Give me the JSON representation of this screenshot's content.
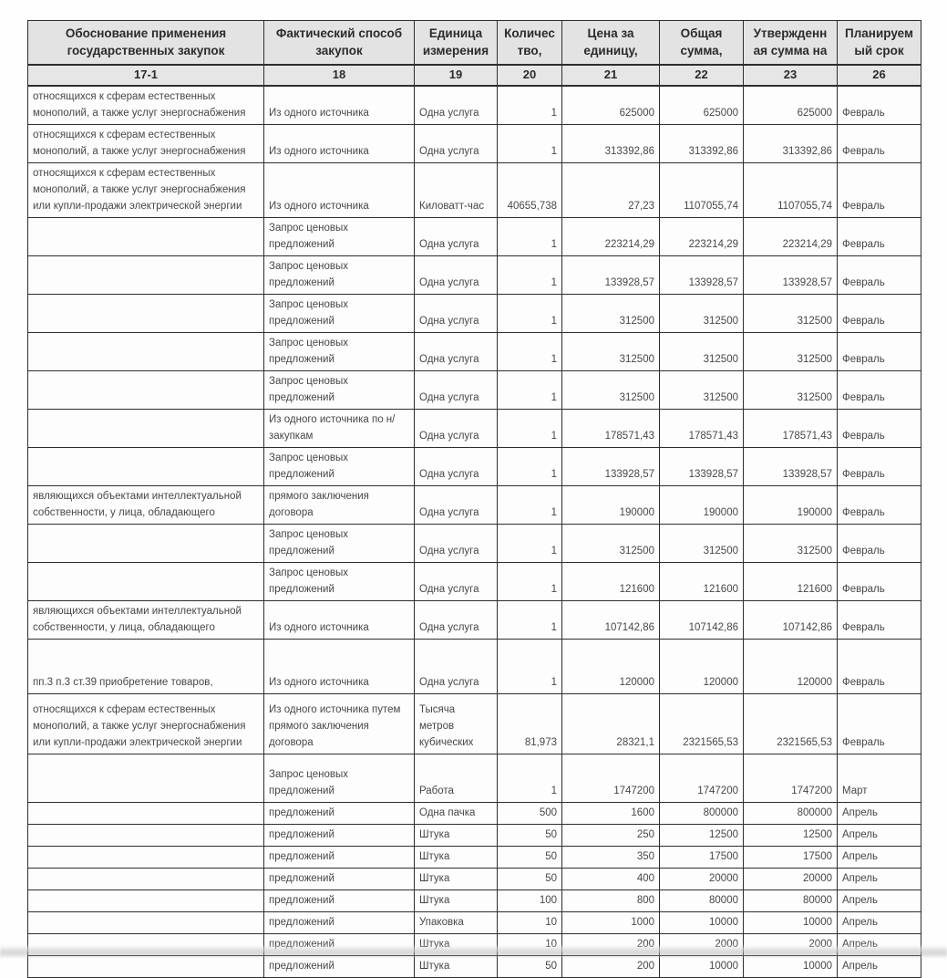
{
  "document": {
    "title": "План государственных закупок (скан таблицы)",
    "header": {
      "columns": [
        {
          "label": "Обоснование применения\nгосударственных закупок",
          "number": "17-1"
        },
        {
          "label": "Фактический способ\nзакупок",
          "number": "18"
        },
        {
          "label": "Единица\nизмерения",
          "number": "19"
        },
        {
          "label": "Количес\nтво,",
          "number": "20"
        },
        {
          "label": "Цена за\nединицу,",
          "number": "21"
        },
        {
          "label": "Общая\nсумма,",
          "number": "22"
        },
        {
          "label": "Утвержденн\nая сумма на",
          "number": "23"
        },
        {
          "label": "Планируем\nый срок",
          "number": "26"
        }
      ]
    },
    "rows": [
      {
        "justification": "относящихся к сферам естественных\nмонополий, а также услуг энергоснабжения",
        "method": "Из одного источника",
        "unit": "Одна услуга",
        "qty": "1",
        "price": "625000",
        "total": "625000",
        "approved": "625000",
        "period": "Февраль"
      },
      {
        "justification": "относящихся к сферам естественных\nмонополий, а также услуг энергоснабжения",
        "method": "Из одного источника",
        "unit": "Одна услуга",
        "qty": "1",
        "price": "313392,86",
        "total": "313392,86",
        "approved": "313392,86",
        "period": "Февраль"
      },
      {
        "justification": "относящихся к сферам естественных\nмонополий, а также услуг энергоснабжения\nили купли-продажи электрической энергии",
        "method": "Из одного источника",
        "unit": "Киловатт-час",
        "qty": "40655,738",
        "price": "27,23",
        "total": "1107055,74",
        "approved": "1107055,74",
        "period": "Февраль"
      },
      {
        "justification": "",
        "method": "Запрос ценовых\nпредложений",
        "unit": "Одна услуга",
        "qty": "1",
        "price": "223214,29",
        "total": "223214,29",
        "approved": "223214,29",
        "period": "Февраль"
      },
      {
        "justification": "",
        "method": "Запрос ценовых\nпредложений",
        "unit": "Одна услуга",
        "qty": "1",
        "price": "133928,57",
        "total": "133928,57",
        "approved": "133928,57",
        "period": "Февраль"
      },
      {
        "justification": "",
        "method": "Запрос ценовых\nпредложений",
        "unit": "Одна услуга",
        "qty": "1",
        "price": "312500",
        "total": "312500",
        "approved": "312500",
        "period": "Февраль"
      },
      {
        "justification": "",
        "method": "Запрос ценовых\nпредложений",
        "unit": "Одна услуга",
        "qty": "1",
        "price": "312500",
        "total": "312500",
        "approved": "312500",
        "period": "Февраль"
      },
      {
        "justification": "",
        "method": "Запрос ценовых\nпредложений",
        "unit": "Одна услуга",
        "qty": "1",
        "price": "312500",
        "total": "312500",
        "approved": "312500",
        "period": "Февраль"
      },
      {
        "justification": "",
        "method": "Из одного источника по н/\nзакупкам",
        "unit": "Одна услуга",
        "qty": "1",
        "price": "178571,43",
        "total": "178571,43",
        "approved": "178571,43",
        "period": "Февраль"
      },
      {
        "justification": "",
        "method": "Запрос ценовых\nпредложений",
        "unit": "Одна услуга",
        "qty": "1",
        "price": "133928,57",
        "total": "133928,57",
        "approved": "133928,57",
        "period": "Февраль"
      },
      {
        "justification": "являющихся объектами интеллектуальной\nсобственности, у лица, обладающего",
        "method": "прямого заключения\nдоговора",
        "unit": "Одна услуга",
        "qty": "1",
        "price": "190000",
        "total": "190000",
        "approved": "190000",
        "period": "Февраль"
      },
      {
        "justification": "",
        "method": "Запрос ценовых\nпредложений",
        "unit": "Одна услуга",
        "qty": "1",
        "price": "312500",
        "total": "312500",
        "approved": "312500",
        "period": "Февраль"
      },
      {
        "justification": "",
        "method": "Запрос ценовых\nпредложений",
        "unit": "Одна услуга",
        "qty": "1",
        "price": "121600",
        "total": "121600",
        "approved": "121600",
        "period": "Февраль"
      },
      {
        "justification": "являющихся объектами интеллектуальной\nсобственности, у лица, обладающего",
        "method": "Из одного источника",
        "unit": "Одна услуга",
        "qty": "1",
        "price": "107142,86",
        "total": "107142,86",
        "approved": "107142,86",
        "period": "Февраль"
      },
      {
        "justification": "пп.3 п.3 ст.39 приобретение товаров,",
        "method": "Из одного источника",
        "unit": "Одна услуга",
        "qty": "1",
        "price": "120000",
        "total": "120000",
        "approved": "120000",
        "period": "Февраль"
      },
      {
        "justification": "относящихся к сферам естественных\nмонополий, а также услуг энергоснабжения\nили купли-продажи электрической энергии",
        "method": "Из одного источника путем\nпрямого заключения\nдоговора",
        "unit": "Тысяча метров\nкубических",
        "qty": "81,973",
        "price": "28321,1",
        "total": "2321565,53",
        "approved": "2321565,53",
        "period": "Февраль"
      },
      {
        "justification": "",
        "method": "Запрос ценовых\nпредложений",
        "unit": "Работа",
        "qty": "1",
        "price": "1747200",
        "total": "1747200",
        "approved": "1747200",
        "period": "Март"
      },
      {
        "justification": "",
        "method": "предложений",
        "unit": "Одна пачка",
        "qty": "500",
        "price": "1600",
        "total": "800000",
        "approved": "800000",
        "period": "Апрель"
      },
      {
        "justification": "",
        "method": "предложений",
        "unit": "Штука",
        "qty": "50",
        "price": "250",
        "total": "12500",
        "approved": "12500",
        "period": "Апрель"
      },
      {
        "justification": "",
        "method": "предложений",
        "unit": "Штука",
        "qty": "50",
        "price": "350",
        "total": "17500",
        "approved": "17500",
        "period": "Апрель"
      },
      {
        "justification": "",
        "method": "предложений",
        "unit": "Штука",
        "qty": "50",
        "price": "400",
        "total": "20000",
        "approved": "20000",
        "period": "Апрель"
      },
      {
        "justification": "",
        "method": "предложений",
        "unit": "Штука",
        "qty": "100",
        "price": "800",
        "total": "80000",
        "approved": "80000",
        "period": "Апрель"
      },
      {
        "justification": "",
        "method": "предложений",
        "unit": "Упаковка",
        "qty": "10",
        "price": "1000",
        "total": "10000",
        "approved": "10000",
        "period": "Апрель"
      },
      {
        "justification": "",
        "method": "предложений",
        "unit": "Штука",
        "qty": "10",
        "price": "200",
        "total": "2000",
        "approved": "2000",
        "period": "Апрель"
      },
      {
        "justification": "",
        "method": "предложений",
        "unit": "Штука",
        "qty": "50",
        "price": "200",
        "total": "10000",
        "approved": "10000",
        "period": "Апрель"
      }
    ]
  },
  "colors": {
    "header_bg": "#e3e3e3",
    "border": "#2e2e2e",
    "text": "#474747",
    "paper": "#fdfdfd"
  }
}
